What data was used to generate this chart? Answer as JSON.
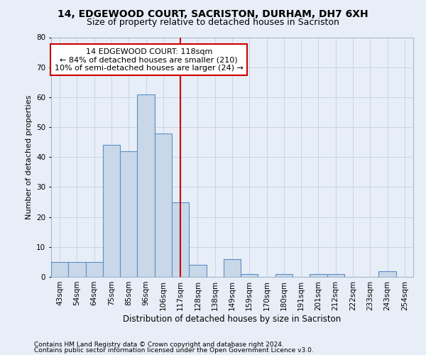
{
  "title": "14, EDGEWOOD COURT, SACRISTON, DURHAM, DH7 6XH",
  "subtitle": "Size of property relative to detached houses in Sacriston",
  "xlabel": "Distribution of detached houses by size in Sacriston",
  "ylabel": "Number of detached properties",
  "bar_labels": [
    "43sqm",
    "54sqm",
    "64sqm",
    "75sqm",
    "85sqm",
    "96sqm",
    "106sqm",
    "117sqm",
    "128sqm",
    "138sqm",
    "149sqm",
    "159sqm",
    "170sqm",
    "180sqm",
    "191sqm",
    "201sqm",
    "212sqm",
    "222sqm",
    "233sqm",
    "243sqm",
    "254sqm"
  ],
  "bar_values": [
    5,
    5,
    5,
    44,
    42,
    61,
    48,
    25,
    4,
    0,
    6,
    1,
    0,
    1,
    0,
    1,
    1,
    0,
    0,
    2,
    0
  ],
  "bar_color": "#c8d8e8",
  "bar_edge_color": "#5a8fc5",
  "vline_x_index": 7,
  "annotation_text": "14 EDGEWOOD COURT: 118sqm\n← 84% of detached houses are smaller (210)\n10% of semi-detached houses are larger (24) →",
  "annotation_box_facecolor": "#ffffff",
  "annotation_box_edgecolor": "#cc0000",
  "vline_color": "#cc0000",
  "ylim": [
    0,
    80
  ],
  "yticks": [
    0,
    10,
    20,
    30,
    40,
    50,
    60,
    70,
    80
  ],
  "grid_color": "#c8d4e8",
  "background_color": "#e8eef8",
  "footer_line1": "Contains HM Land Registry data © Crown copyright and database right 2024.",
  "footer_line2": "Contains public sector information licensed under the Open Government Licence v3.0.",
  "title_fontsize": 10,
  "subtitle_fontsize": 9,
  "ylabel_fontsize": 8,
  "xlabel_fontsize": 8.5,
  "tick_fontsize": 7.5,
  "annotation_fontsize": 8,
  "footer_fontsize": 6.5
}
